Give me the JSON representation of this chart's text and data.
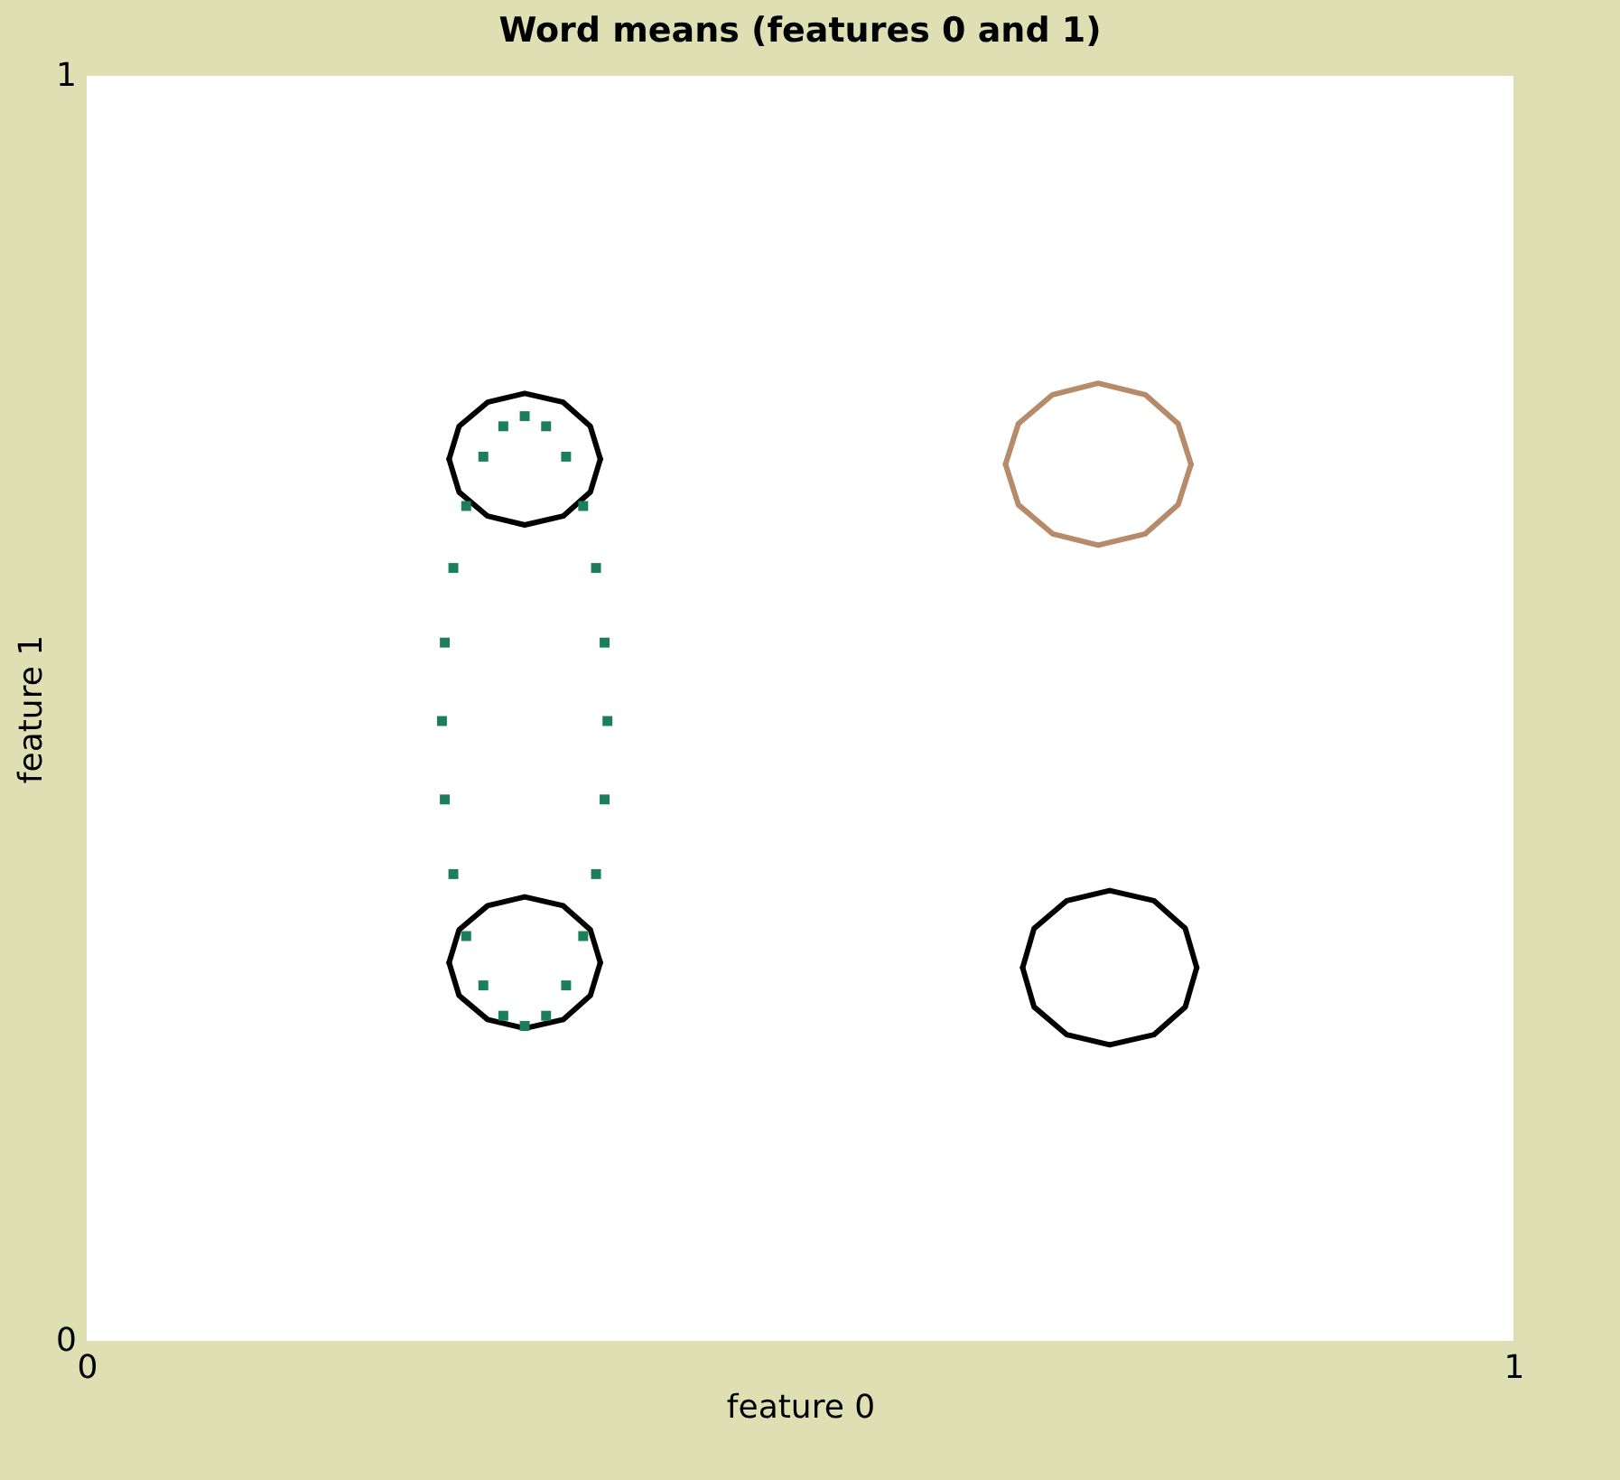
{
  "chart_data": {
    "type": "line",
    "title": "Word means (features 0 and 1)",
    "xlabel": "feature 0",
    "ylabel": "feature 1",
    "xlim": [
      0,
      1
    ],
    "ylim": [
      0,
      1
    ],
    "xticks": [
      0,
      1
    ],
    "yticks": [
      0,
      1
    ],
    "grid": false,
    "marker": "none",
    "line_style": "solid",
    "series": [
      {
        "color": "#000000",
        "x": [
          0.254,
          0.261,
          0.281,
          0.307,
          0.334,
          0.353,
          0.36
        ],
        "values": [
          0.697,
          0.723,
          0.742,
          0.749,
          0.742,
          0.723,
          0.697
        ]
      },
      {
        "color": "#000000",
        "x": [
          0.254,
          0.261,
          0.281,
          0.307,
          0.334,
          0.353,
          0.36
        ],
        "values": [
          0.697,
          0.671,
          0.652,
          0.645,
          0.652,
          0.671,
          0.697
        ]
      },
      {
        "color": "#000000",
        "x": [
          0.254,
          0.261,
          0.281,
          0.307,
          0.334,
          0.353,
          0.36
        ],
        "values": [
          0.299,
          0.325,
          0.344,
          0.351,
          0.344,
          0.325,
          0.299
        ]
      },
      {
        "color": "#000000",
        "x": [
          0.254,
          0.261,
          0.281,
          0.307,
          0.334,
          0.353,
          0.36
        ],
        "values": [
          0.299,
          0.273,
          0.254,
          0.247,
          0.254,
          0.273,
          0.299
        ]
      },
      {
        "type": "scatter",
        "marker": "square",
        "color": "#1a7f5a",
        "x": [
          0.365,
          0.363,
          0.357,
          0.348,
          0.336,
          0.322,
          0.307,
          0.292,
          0.278,
          0.266,
          0.257,
          0.251,
          0.249,
          0.251,
          0.257,
          0.266,
          0.278,
          0.292,
          0.307,
          0.322,
          0.336,
          0.348,
          0.357,
          0.363
        ],
        "values": [
          0.49,
          0.552,
          0.611,
          0.66,
          0.699,
          0.723,
          0.731,
          0.723,
          0.699,
          0.66,
          0.611,
          0.552,
          0.49,
          0.428,
          0.369,
          0.32,
          0.281,
          0.257,
          0.249,
          0.257,
          0.281,
          0.32,
          0.369,
          0.428
        ]
      },
      {
        "color": "#b58b6a",
        "x": [
          0.644,
          0.653,
          0.677,
          0.709,
          0.742,
          0.765,
          0.774
        ],
        "values": [
          0.693,
          0.725,
          0.748,
          0.757,
          0.748,
          0.725,
          0.693
        ]
      },
      {
        "color": "#b58b6a",
        "x": [
          0.644,
          0.653,
          0.677,
          0.709,
          0.742,
          0.765,
          0.774
        ],
        "values": [
          0.693,
          0.661,
          0.638,
          0.629,
          0.638,
          0.661,
          0.693
        ]
      },
      {
        "color": "#000000",
        "x": [
          0.656,
          0.664,
          0.687,
          0.717,
          0.748,
          0.77,
          0.778
        ],
        "values": [
          0.295,
          0.326,
          0.348,
          0.356,
          0.348,
          0.326,
          0.295
        ]
      },
      {
        "color": "#000000",
        "x": [
          0.656,
          0.664,
          0.687,
          0.717,
          0.748,
          0.77,
          0.778
        ],
        "values": [
          0.295,
          0.264,
          0.242,
          0.234,
          0.242,
          0.264,
          0.295
        ]
      }
    ]
  }
}
